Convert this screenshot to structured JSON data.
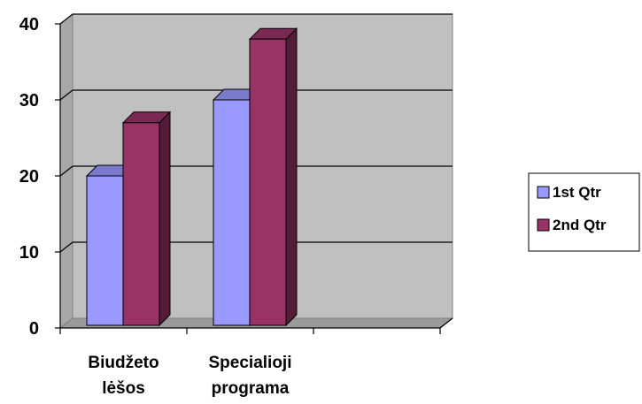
{
  "chart_data": {
    "type": "bar",
    "style": "3d-clustered-column",
    "categories": [
      [
        "Biudžeto",
        "lėšos"
      ],
      [
        "Specialioji",
        "programa"
      ],
      ""
    ],
    "series": [
      {
        "name": "1st Qtr",
        "values": [
          20,
          30,
          null
        ],
        "color": "#9999FF"
      },
      {
        "name": "2nd Qtr",
        "values": [
          27,
          38,
          null
        ],
        "color": "#993366"
      }
    ],
    "ylim": [
      0,
      40
    ],
    "yticks": [
      0,
      10,
      20,
      30,
      40
    ],
    "grid": true,
    "wall_color": "#C0C0C0",
    "legend_position": "right"
  }
}
